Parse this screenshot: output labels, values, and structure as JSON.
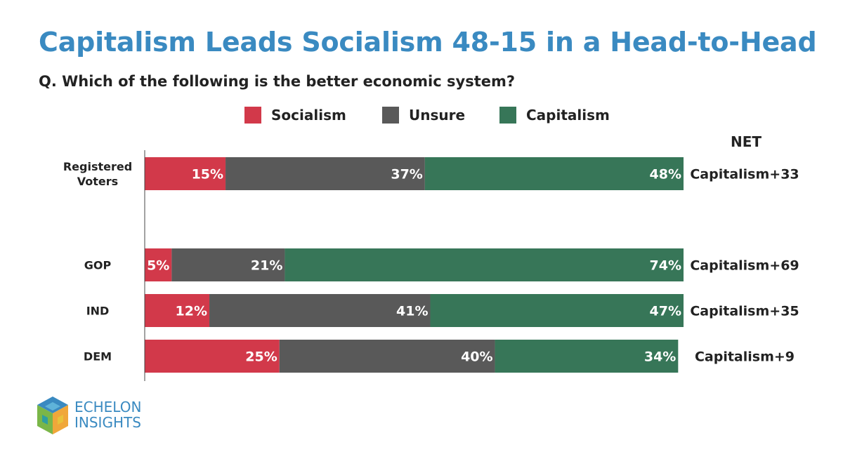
{
  "title": "Capitalism Leads Socialism 48-15 in a Head-to-Head",
  "subtitle": "Q. Which of the following is the better economic system?",
  "legend": [
    {
      "label": "Socialism",
      "color": "#d2394a"
    },
    {
      "label": "Unsure",
      "color": "#595959"
    },
    {
      "label": "Capitalism",
      "color": "#377658"
    }
  ],
  "net_header": "NET",
  "logo": {
    "line1": "ECHELON",
    "line2": "INSIGHTS"
  },
  "chart_data": {
    "type": "bar",
    "orientation": "horizontal",
    "stacked": true,
    "categories": [
      "Registered Voters",
      "GOP",
      "IND",
      "DEM"
    ],
    "category_label_lines": [
      [
        "Registered",
        "Voters"
      ],
      [
        "GOP"
      ],
      [
        "IND"
      ],
      [
        "DEM"
      ]
    ],
    "series": [
      {
        "name": "Socialism",
        "color": "#d2394a",
        "values": [
          15,
          5,
          12,
          25
        ],
        "labels": [
          "15%",
          "5%",
          "12%",
          "25%"
        ]
      },
      {
        "name": "Unsure",
        "color": "#595959",
        "values": [
          37,
          21,
          41,
          40
        ],
        "labels": [
          "37%",
          "21%",
          "41%",
          "40%"
        ]
      },
      {
        "name": "Capitalism",
        "color": "#377658",
        "values": [
          48,
          74,
          47,
          34
        ],
        "labels": [
          "48%",
          "74%",
          "47%",
          "34%"
        ]
      }
    ],
    "net": [
      "Capitalism+33",
      "Capitalism+69",
      "Capitalism+35",
      "Capitalism+9"
    ],
    "xlim": [
      0,
      100
    ]
  }
}
